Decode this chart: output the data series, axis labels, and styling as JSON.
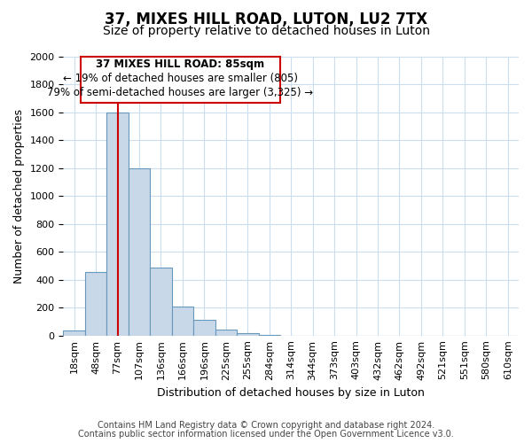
{
  "title": "37, MIXES HILL ROAD, LUTON, LU2 7TX",
  "subtitle": "Size of property relative to detached houses in Luton",
  "xlabel": "Distribution of detached houses by size in Luton",
  "ylabel": "Number of detached properties",
  "bin_labels": [
    "18sqm",
    "48sqm",
    "77sqm",
    "107sqm",
    "136sqm",
    "166sqm",
    "196sqm",
    "225sqm",
    "255sqm",
    "284sqm",
    "314sqm",
    "344sqm",
    "373sqm",
    "403sqm",
    "432sqm",
    "462sqm",
    "492sqm",
    "521sqm",
    "551sqm",
    "580sqm",
    "610sqm"
  ],
  "bar_values": [
    35,
    455,
    1600,
    1200,
    490,
    210,
    115,
    45,
    20,
    5,
    0,
    0,
    0,
    0,
    0,
    0,
    0,
    0,
    0,
    0,
    0
  ],
  "bar_color": "#c8d8e8",
  "bar_edge_color": "#6699bb",
  "ylim": [
    0,
    2000
  ],
  "yticks": [
    0,
    200,
    400,
    600,
    800,
    1000,
    1200,
    1400,
    1600,
    1800,
    2000
  ],
  "vline_x": 2.0,
  "vline_color": "#cc0000",
  "annotation_title": "37 MIXES HILL ROAD: 85sqm",
  "annotation_line1": "← 19% of detached houses are smaller (805)",
  "annotation_line2": "79% of semi-detached houses are larger (3,325) →",
  "annotation_box_color": "#ffffff",
  "annotation_box_edge": "#cc0000",
  "footer1": "Contains HM Land Registry data © Crown copyright and database right 2024.",
  "footer2": "Contains public sector information licensed under the Open Government Licence v3.0.",
  "bg_color": "#ffffff",
  "grid_color": "#ccddee",
  "title_fontsize": 12,
  "subtitle_fontsize": 10,
  "axis_label_fontsize": 9,
  "tick_fontsize": 8,
  "annotation_fontsize": 8.5,
  "footer_fontsize": 7
}
